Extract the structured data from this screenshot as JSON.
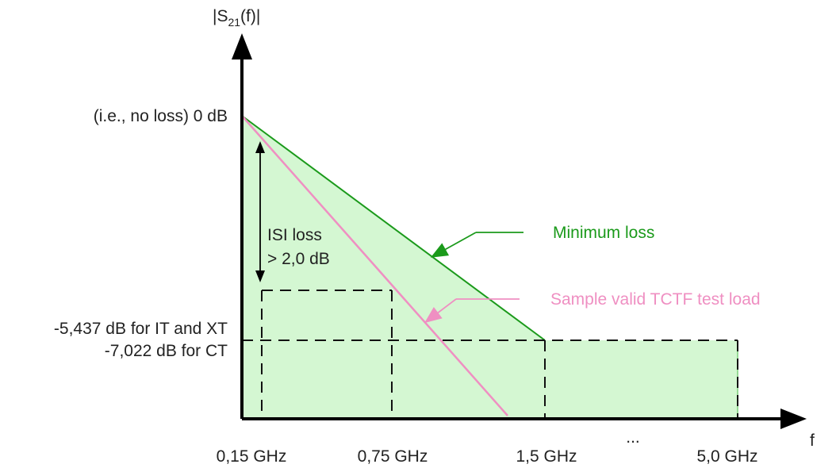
{
  "axes": {
    "y_label_prefix": "|S",
    "y_label_sub": "21",
    "y_label_suffix": "(f)|",
    "x_label": "f",
    "ellipsis": "..."
  },
  "y_ticks": {
    "zero": "(i.e., no loss) 0 dB",
    "line1": "-5,437 dB for IT and XT",
    "line2": "-7,022 dB for CT"
  },
  "x_ticks": [
    "0,15 GHz",
    "0,75 GHz",
    "1,5 GHz",
    "5,0 GHz"
  ],
  "annotations": {
    "isi_line1": "ISI loss",
    "isi_line2": "> 2,0 dB",
    "minimum_loss": "Minimum loss",
    "sample_load": "Sample valid TCTF test load"
  },
  "colors": {
    "fill": "#d4f7d2",
    "minimum_loss_line": "#1b9a1b",
    "sample_line": "#ef8fc2",
    "axis": "#000000"
  }
}
